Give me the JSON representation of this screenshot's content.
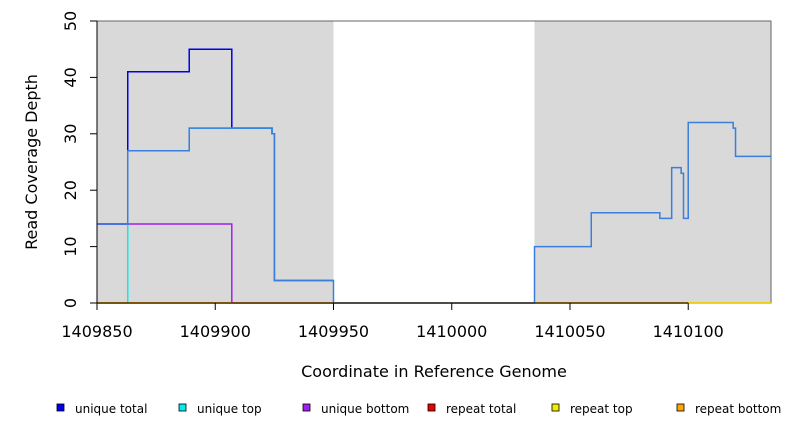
{
  "chart_data": {
    "type": "line",
    "title": "",
    "xlabel": "Coordinate in Reference Genome",
    "ylabel": "Read Coverage Depth",
    "xlim": [
      1409850,
      1410135
    ],
    "ylim": [
      0,
      50
    ],
    "x_ticks": [
      1409850,
      1409900,
      1409950,
      1410000,
      1410050,
      1410100
    ],
    "x_tick_labels": [
      "1409850",
      "1409900",
      "1409950",
      "1410000",
      "1410050",
      "1410100"
    ],
    "y_ticks": [
      0,
      10,
      20,
      30,
      40,
      50
    ],
    "y_tick_labels": [
      "0",
      "10",
      "20",
      "30",
      "40",
      "50"
    ],
    "grid": false,
    "legend_position": "bottom",
    "shaded_regions": [
      {
        "x": [
          1409850,
          1409950
        ],
        "color": "#d9d9d9"
      },
      {
        "x": [
          1410035,
          1410135
        ],
        "color": "#d9d9d9"
      }
    ],
    "series": [
      {
        "name": "unique total",
        "color": "#0000ee",
        "step": true,
        "x": [
          1409850,
          1409863,
          1409889,
          1409907,
          1409924,
          1409925,
          1409950
        ],
        "values": [
          14,
          41,
          45,
          31,
          30,
          4,
          4
        ]
      },
      {
        "name": "unique top",
        "color": "#00eeee",
        "step": true,
        "x": [
          1409850,
          1409863,
          1409889,
          1409907,
          1409924,
          1409925,
          1409950
        ],
        "values": [
          0,
          27,
          31,
          31,
          30,
          4,
          4
        ]
      },
      {
        "name": "unique bottom",
        "color": "#a020f0",
        "step": true,
        "x": [
          1409850,
          1409907,
          1409950
        ],
        "values": [
          14,
          0,
          0
        ]
      },
      {
        "name": "repeat total",
        "color": "#ee0000",
        "step": true,
        "x": [
          1409850,
          1410135
        ],
        "values": [
          0,
          0
        ]
      },
      {
        "name": "repeat top",
        "color": "#eeee00",
        "step": true,
        "x": [
          1409850,
          1410135
        ],
        "values": [
          0,
          0
        ]
      },
      {
        "name": "repeat bottom",
        "color": "#ffa500",
        "step": true,
        "x": [
          1409850,
          1409907
        ],
        "values": [
          0,
          0
        ]
      },
      {
        "name": "",
        "color": "#3a7fdc",
        "step": true,
        "x": [
          1409850,
          1409863,
          1409889,
          1409907,
          1409924,
          1409925,
          1409950,
          1410035,
          1410059,
          1410088,
          1410093,
          1410097,
          1410098,
          1410100,
          1410119,
          1410120,
          1410135
        ],
        "values": [
          14,
          27,
          31,
          31,
          30,
          4,
          0,
          10,
          16,
          15,
          24,
          23,
          15,
          32,
          31,
          26,
          26
        ]
      }
    ]
  }
}
